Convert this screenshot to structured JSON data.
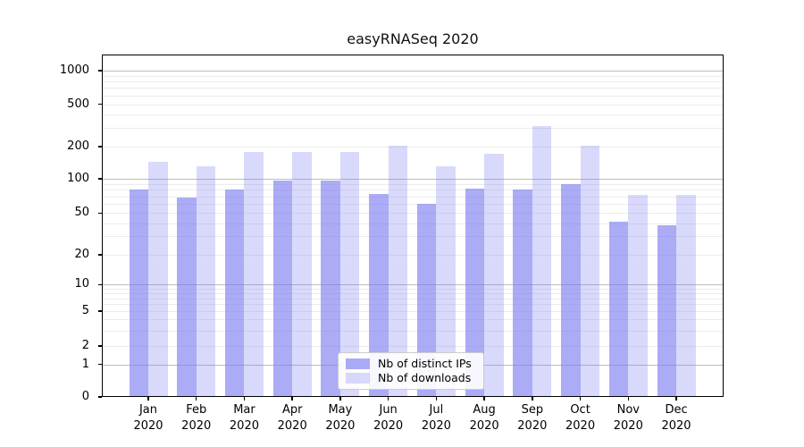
{
  "chart_data": {
    "type": "bar",
    "title": "easyRNASeq 2020",
    "categories": [
      "Jan 2020",
      "Feb 2020",
      "Mar 2020",
      "Apr 2020",
      "May 2020",
      "Jun 2020",
      "Jul 2020",
      "Aug 2020",
      "Sep 2020",
      "Oct 2020",
      "Nov 2020",
      "Dec 2020"
    ],
    "month_labels": [
      "Jan",
      "Feb",
      "Mar",
      "Apr",
      "May",
      "Jun",
      "Jul",
      "Aug",
      "Sep",
      "Oct",
      "Nov",
      "Dec"
    ],
    "year_label": "2020",
    "series": [
      {
        "name": "Nb of distinct IPs",
        "color": "#7878f0",
        "alpha": 0.62,
        "values": [
          80,
          68,
          80,
          96,
          96,
          74,
          60,
          82,
          81,
          89,
          41,
          38
        ]
      },
      {
        "name": "Nb of downloads",
        "color": "#7878f0",
        "alpha": 0.28,
        "values": [
          145,
          131,
          178,
          178,
          177,
          204,
          131,
          170,
          310,
          202,
          72,
          72
        ]
      }
    ],
    "yscale": "log-like",
    "ylim": [
      0,
      1000
    ],
    "yticks": [
      0,
      1,
      2,
      5,
      10,
      20,
      50,
      100,
      200,
      500,
      1000
    ],
    "grid": "horizontal major and minor gridlines",
    "legend_position": "inside lower-center",
    "colors": {
      "major_gridline": "#bdbdbd",
      "minor_gridline": "#ececec",
      "axis_frame": "#000000",
      "background": "#ffffff"
    }
  }
}
